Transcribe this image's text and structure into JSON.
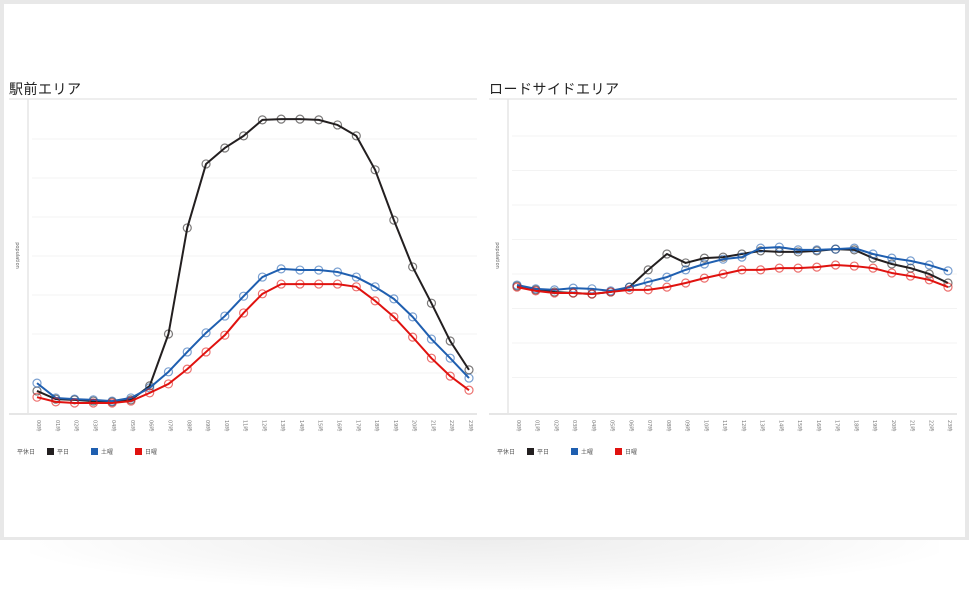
{
  "panels": [
    {
      "title": "駅前エリア",
      "ylabel": "population",
      "legend": {
        "title": "平休日",
        "items": [
          {
            "label": "平日",
            "color": "#231f20"
          },
          {
            "label": "土曜",
            "color": "#1f5fb0"
          },
          {
            "label": "日曜",
            "color": "#e0120f"
          }
        ]
      }
    },
    {
      "title": "ロードサイドエリア",
      "ylabel": "population",
      "legend": {
        "title": "平休日",
        "items": [
          {
            "label": "平日",
            "color": "#231f20"
          },
          {
            "label": "土曜",
            "color": "#1f5fb0"
          },
          {
            "label": "日曜",
            "color": "#e0120f"
          }
        ]
      }
    }
  ],
  "chart_data": [
    {
      "type": "line",
      "title": "駅前エリア",
      "xlabel": "",
      "ylabel": "population",
      "x": [
        "00時",
        "01時",
        "02時",
        "03時",
        "04時",
        "05時",
        "06時",
        "07時",
        "08時",
        "09時",
        "10時",
        "11時",
        "12時",
        "13時",
        "14時",
        "15時",
        "16時",
        "17時",
        "18時",
        "19時",
        "20時",
        "21時",
        "22時",
        "23時"
      ],
      "ylim": [
        0,
        8
      ],
      "grid": true,
      "legend_position": "bottom-left",
      "series": [
        {
          "name": "平日",
          "color": "#231f20",
          "values": [
            0.54,
            0.33,
            0.31,
            0.28,
            0.26,
            0.31,
            0.67,
            2.0,
            4.72,
            6.36,
            6.77,
            7.08,
            7.49,
            7.51,
            7.51,
            7.49,
            7.36,
            7.08,
            6.21,
            4.92,
            3.72,
            2.79,
            1.82,
            1.08
          ]
        },
        {
          "name": "土曜",
          "color": "#1f5fb0",
          "values": [
            0.74,
            0.36,
            0.33,
            0.31,
            0.28,
            0.36,
            0.62,
            1.03,
            1.54,
            2.03,
            2.46,
            2.97,
            3.46,
            3.67,
            3.64,
            3.64,
            3.59,
            3.46,
            3.21,
            2.9,
            2.44,
            1.87,
            1.38,
            0.87
          ]
        },
        {
          "name": "日曜",
          "color": "#e0120f",
          "values": [
            0.38,
            0.26,
            0.23,
            0.23,
            0.23,
            0.28,
            0.49,
            0.72,
            1.1,
            1.54,
            1.97,
            2.54,
            3.03,
            3.28,
            3.28,
            3.28,
            3.28,
            3.21,
            2.85,
            2.44,
            1.92,
            1.38,
            0.92,
            0.56
          ]
        }
      ]
    },
    {
      "type": "line",
      "title": "ロードサイドエリア",
      "xlabel": "",
      "ylabel": "population",
      "x": [
        "00時",
        "01時",
        "02時",
        "03時",
        "04時",
        "05時",
        "06時",
        "07時",
        "08時",
        "09時",
        "10時",
        "11時",
        "12時",
        "13時",
        "14時",
        "15時",
        "16時",
        "17時",
        "18時",
        "19時",
        "20時",
        "21時",
        "22時",
        "23時"
      ],
      "ylim": [
        0,
        9
      ],
      "grid": true,
      "legend_position": "bottom-left",
      "series": [
        {
          "name": "平日",
          "color": "#231f20",
          "values": [
            3.65,
            3.54,
            3.48,
            3.45,
            3.42,
            3.48,
            3.62,
            4.12,
            4.58,
            4.32,
            4.46,
            4.49,
            4.58,
            4.67,
            4.64,
            4.64,
            4.67,
            4.72,
            4.7,
            4.46,
            4.29,
            4.17,
            4.0,
            3.74
          ]
        },
        {
          "name": "土曜",
          "color": "#1f5fb0",
          "values": [
            3.68,
            3.57,
            3.54,
            3.59,
            3.57,
            3.51,
            3.62,
            3.77,
            3.91,
            4.12,
            4.29,
            4.43,
            4.49,
            4.75,
            4.78,
            4.7,
            4.7,
            4.72,
            4.75,
            4.58,
            4.46,
            4.38,
            4.26,
            4.09
          ]
        },
        {
          "name": "日曜",
          "color": "#e0120f",
          "values": [
            3.62,
            3.51,
            3.45,
            3.45,
            3.42,
            3.48,
            3.54,
            3.54,
            3.62,
            3.74,
            3.88,
            4.0,
            4.12,
            4.12,
            4.17,
            4.17,
            4.2,
            4.26,
            4.23,
            4.17,
            4.03,
            3.94,
            3.83,
            3.62
          ]
        }
      ]
    }
  ]
}
